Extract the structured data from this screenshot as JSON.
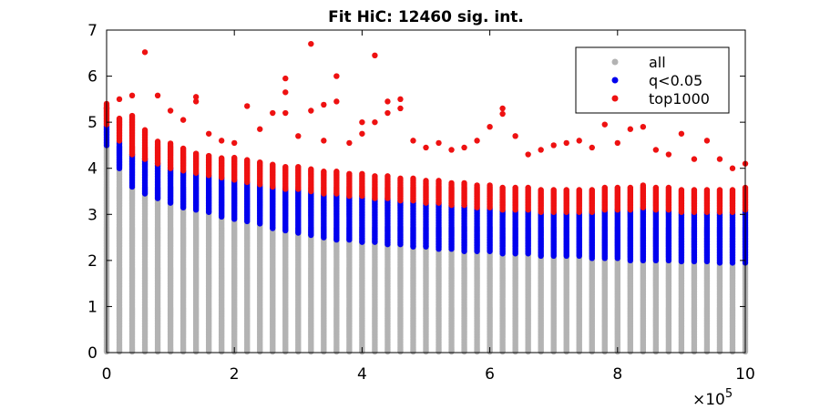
{
  "chart_data": {
    "type": "scatter",
    "title": "Fit HiC: 12460 sig. int.",
    "xlabel": "",
    "ylabel": "",
    "xlim": [
      0,
      1000000
    ],
    "ylim": [
      0,
      7
    ],
    "x_ticks": [
      0,
      200000,
      400000,
      600000,
      800000,
      1000000
    ],
    "x_tick_labels": [
      "0",
      "2",
      "4",
      "6",
      "8",
      "10"
    ],
    "x_exponent_label": {
      "base": "×10",
      "exponent": "5"
    },
    "y_ticks": [
      0,
      1,
      2,
      3,
      4,
      5,
      6,
      7
    ],
    "y_tick_labels": [
      "0",
      "1",
      "2",
      "3",
      "4",
      "5",
      "6",
      "7"
    ],
    "grid": false,
    "legend_position": "top-right",
    "x_bins": [
      0,
      20000,
      40000,
      60000,
      80000,
      100000,
      120000,
      140000,
      160000,
      180000,
      200000,
      220000,
      240000,
      260000,
      280000,
      300000,
      320000,
      340000,
      360000,
      380000,
      400000,
      420000,
      440000,
      460000,
      480000,
      500000,
      520000,
      540000,
      560000,
      580000,
      600000,
      620000,
      640000,
      660000,
      680000,
      700000,
      720000,
      740000,
      760000,
      780000,
      800000,
      820000,
      840000,
      860000,
      880000,
      900000,
      920000,
      940000,
      960000,
      980000,
      1000000
    ],
    "series": [
      {
        "name": "all",
        "color": "#b3b3b3",
        "y_min": 0.02,
        "y_max": [
          4.5,
          4.0,
          3.6,
          3.45,
          3.35,
          3.25,
          3.15,
          3.1,
          3.05,
          2.95,
          2.9,
          2.85,
          2.8,
          2.7,
          2.65,
          2.6,
          2.55,
          2.5,
          2.45,
          2.45,
          2.4,
          2.4,
          2.35,
          2.35,
          2.3,
          2.3,
          2.25,
          2.25,
          2.2,
          2.2,
          2.2,
          2.15,
          2.15,
          2.15,
          2.1,
          2.1,
          2.1,
          2.1,
          2.05,
          2.05,
          2.05,
          2.0,
          2.0,
          2.0,
          2.0,
          1.98,
          1.98,
          1.98,
          1.95,
          1.95,
          1.95
        ]
      },
      {
        "name": "q<0.05",
        "color": "#0000ee",
        "y_max": [
          4.95,
          4.6,
          4.3,
          4.2,
          4.1,
          4.0,
          3.95,
          3.9,
          3.85,
          3.8,
          3.75,
          3.7,
          3.65,
          3.6,
          3.55,
          3.55,
          3.5,
          3.45,
          3.45,
          3.4,
          3.4,
          3.35,
          3.35,
          3.3,
          3.3,
          3.25,
          3.25,
          3.2,
          3.2,
          3.15,
          3.15,
          3.1,
          3.1,
          3.1,
          3.05,
          3.05,
          3.05,
          3.05,
          3.05,
          3.1,
          3.1,
          3.1,
          3.15,
          3.1,
          3.1,
          3.05,
          3.05,
          3.05,
          3.05,
          3.05,
          3.1
        ]
      },
      {
        "name": "top1000",
        "color": "#ee1111",
        "band_top": [
          5.38,
          5.1,
          5.15,
          4.85,
          4.6,
          4.55,
          4.45,
          4.35,
          4.3,
          4.25,
          4.25,
          4.2,
          4.15,
          4.1,
          4.05,
          4.05,
          4.0,
          3.95,
          3.95,
          3.9,
          3.9,
          3.85,
          3.85,
          3.8,
          3.8,
          3.75,
          3.75,
          3.7,
          3.7,
          3.65,
          3.65,
          3.6,
          3.6,
          3.6,
          3.55,
          3.55,
          3.55,
          3.55,
          3.55,
          3.6,
          3.6,
          3.6,
          3.65,
          3.6,
          3.6,
          3.55,
          3.55,
          3.55,
          3.55,
          3.55,
          3.6
        ],
        "outliers": [
          [
            0,
            5.4
          ],
          [
            0,
            5.3
          ],
          [
            20000,
            5.5
          ],
          [
            40000,
            5.58
          ],
          [
            60000,
            6.52
          ],
          [
            80000,
            5.58
          ],
          [
            100000,
            5.25
          ],
          [
            120000,
            5.05
          ],
          [
            140000,
            5.55
          ],
          [
            140000,
            5.45
          ],
          [
            160000,
            4.75
          ],
          [
            180000,
            4.6
          ],
          [
            200000,
            4.55
          ],
          [
            220000,
            5.35
          ],
          [
            240000,
            4.85
          ],
          [
            260000,
            5.2
          ],
          [
            280000,
            5.95
          ],
          [
            280000,
            5.65
          ],
          [
            280000,
            5.2
          ],
          [
            300000,
            4.7
          ],
          [
            320000,
            6.7
          ],
          [
            320000,
            5.25
          ],
          [
            340000,
            5.38
          ],
          [
            340000,
            4.6
          ],
          [
            360000,
            6.0
          ],
          [
            360000,
            5.45
          ],
          [
            380000,
            4.55
          ],
          [
            400000,
            5.0
          ],
          [
            400000,
            4.75
          ],
          [
            420000,
            6.45
          ],
          [
            420000,
            5.0
          ],
          [
            440000,
            5.45
          ],
          [
            440000,
            5.2
          ],
          [
            460000,
            5.5
          ],
          [
            460000,
            5.3
          ],
          [
            480000,
            4.6
          ],
          [
            500000,
            4.45
          ],
          [
            520000,
            4.55
          ],
          [
            540000,
            4.4
          ],
          [
            560000,
            4.45
          ],
          [
            580000,
            4.6
          ],
          [
            600000,
            4.9
          ],
          [
            620000,
            5.3
          ],
          [
            620000,
            5.18
          ],
          [
            640000,
            4.7
          ],
          [
            660000,
            4.3
          ],
          [
            680000,
            4.4
          ],
          [
            700000,
            4.5
          ],
          [
            720000,
            4.55
          ],
          [
            740000,
            4.6
          ],
          [
            760000,
            4.45
          ],
          [
            780000,
            4.95
          ],
          [
            800000,
            4.55
          ],
          [
            820000,
            4.85
          ],
          [
            840000,
            4.9
          ],
          [
            860000,
            4.4
          ],
          [
            880000,
            4.3
          ],
          [
            900000,
            4.75
          ],
          [
            920000,
            4.2
          ],
          [
            940000,
            4.6
          ],
          [
            960000,
            4.2
          ],
          [
            980000,
            4.0
          ],
          [
            1000000,
            4.1
          ]
        ]
      }
    ]
  }
}
